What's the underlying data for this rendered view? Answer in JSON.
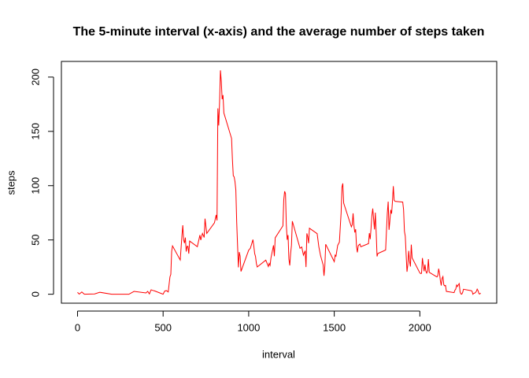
{
  "chart_data": {
    "type": "line",
    "title": "The 5-minute interval (x-axis) and the average number of steps taken",
    "xlabel": "interval",
    "ylabel": "steps",
    "color": "#ff0000",
    "x": [
      0,
      10,
      25,
      40,
      55,
      100,
      130,
      200,
      230,
      300,
      330,
      400,
      410,
      420,
      430,
      440,
      450,
      500,
      505,
      510,
      520,
      530,
      540,
      545,
      550,
      555,
      600,
      610,
      615,
      620,
      625,
      630,
      635,
      640,
      645,
      650,
      655,
      700,
      715,
      720,
      730,
      740,
      745,
      755,
      800,
      810,
      815,
      820,
      825,
      830,
      835,
      840,
      845,
      850,
      855,
      900,
      905,
      910,
      915,
      920,
      925,
      930,
      935,
      940,
      945,
      950,
      955,
      1000,
      1010,
      1025,
      1030,
      1035,
      1040,
      1045,
      1050,
      1100,
      1115,
      1120,
      1125,
      1130,
      1145,
      1150,
      1155,
      1200,
      1205,
      1210,
      1215,
      1220,
      1225,
      1230,
      1235,
      1240,
      1245,
      1250,
      1255,
      1300,
      1310,
      1320,
      1330,
      1335,
      1340,
      1345,
      1350,
      1355,
      1400,
      1410,
      1420,
      1435,
      1440,
      1445,
      1450,
      1500,
      1505,
      1510,
      1520,
      1530,
      1540,
      1545,
      1550,
      1555,
      1600,
      1605,
      1610,
      1615,
      1620,
      1625,
      1630,
      1635,
      1640,
      1645,
      1650,
      1655,
      1700,
      1705,
      1710,
      1715,
      1720,
      1725,
      1730,
      1735,
      1740,
      1745,
      1750,
      1755,
      1800,
      1805,
      1810,
      1815,
      1820,
      1825,
      1830,
      1835,
      1840,
      1845,
      1850,
      1855,
      1900,
      1905,
      1910,
      1915,
      1920,
      1925,
      1930,
      1935,
      1940,
      1945,
      1950,
      1955,
      2000,
      2005,
      2010,
      2015,
      2020,
      2025,
      2030,
      2035,
      2040,
      2045,
      2050,
      2055,
      2100,
      2105,
      2110,
      2115,
      2120,
      2125,
      2130,
      2135,
      2140,
      2145,
      2150,
      2155,
      2200,
      2205,
      2210,
      2215,
      2220,
      2225,
      2230,
      2235,
      2240,
      2245,
      2250,
      2255,
      2300,
      2305,
      2310,
      2315,
      2320,
      2325,
      2330,
      2335,
      2340,
      2345,
      2350,
      2355
    ],
    "values": [
      1.7,
      0.1,
      2.1,
      0,
      0.1,
      0.3,
      1.8,
      0,
      0,
      0,
      2.6,
      1.2,
      2.6,
      0.3,
      4.1,
      3.5,
      3.1,
      0,
      1.6,
      3.0,
      3.3,
      2.1,
      16.0,
      18.3,
      39.5,
      44.5,
      31.5,
      53.8,
      63.5,
      50.0,
      47.1,
      52.2,
      39.3,
      44.0,
      44.2,
      37.4,
      49.0,
      43.8,
      54.5,
      49.9,
      56.0,
      52.3,
      69.6,
      56.0,
      65.8,
      73.0,
      68.0,
      171.2,
      155.4,
      177.3,
      206.2,
      195.9,
      179.6,
      183.4,
      167.0,
      143.5,
      124.0,
      109.1,
      108.1,
      103.7,
      95.9,
      66.2,
      45.2,
      24.8,
      38.8,
      35.0,
      21.0,
      40.6,
      42.4,
      50.3,
      44.3,
      37.4,
      34.7,
      28.3,
      25.1,
      31.4,
      25.5,
      28.4,
      26.6,
      33.3,
      45.0,
      35.0,
      52.0,
      63.0,
      87.0,
      94.8,
      92.8,
      63.4,
      50.2,
      54.5,
      32.4,
      26.5,
      37.7,
      45.1,
      67.3,
      42.3,
      43.5,
      36.0,
      40.0,
      25.0,
      56.0,
      53.0,
      47.0,
      60.8,
      55.8,
      43.6,
      35.5,
      27.0,
      17.0,
      26.0,
      46.0,
      30.0,
      36.0,
      35.0,
      45.0,
      48.0,
      75.0,
      98.7,
      102.1,
      83.9,
      62.1,
      64.1,
      74.5,
      63.2,
      56.9,
      59.8,
      43.9,
      38.6,
      44.7,
      45.5,
      46.2,
      43.7,
      46.6,
      56.3,
      50.7,
      61.2,
      72.7,
      78.9,
      68.9,
      59.7,
      75.1,
      56.5,
      34.8,
      37.5,
      40.7,
      58.0,
      74.7,
      85.3,
      59.3,
      67.8,
      77.7,
      74.2,
      85.3,
      99.5,
      86.6,
      85.6,
      84.9,
      77.8,
      58.0,
      53.4,
      36.3,
      20.7,
      27.4,
      40.0,
      30.2,
      25.5,
      45.7,
      33.5,
      19.6,
      19.0,
      19.3,
      33.3,
      26.8,
      21.2,
      27.3,
      21.3,
      19.5,
      21.3,
      32.3,
      20.2,
      15.9,
      17.2,
      23.5,
      19.2,
      12.5,
      8.0,
      14.7,
      16.3,
      8.7,
      7.8,
      8.1,
      2.6,
      1.5,
      3.7,
      4.8,
      8.5,
      7.1,
      8.7,
      9.8,
      2.2,
      0.3,
      0.1,
      1.6,
      4.6,
      3.3,
      2.8,
      0,
      0.8,
      1.0,
      1.6,
      2.6,
      4.7,
      3.3,
      0.6,
      0.2,
      1.1
    ],
    "xlim": [
      -94.2,
      2449.2
    ],
    "ylim": [
      -8.25,
      214.42
    ],
    "xticks": [
      0,
      500,
      1000,
      1500,
      2000
    ],
    "yticks": [
      0,
      50,
      100,
      150,
      200
    ]
  }
}
